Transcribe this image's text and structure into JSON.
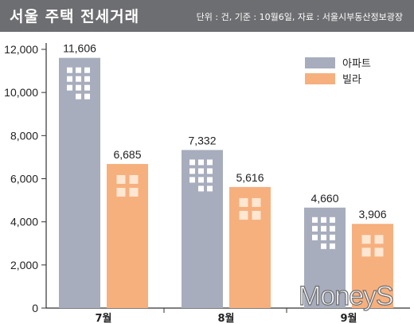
{
  "header": {
    "title": "서울 주택 전세거래",
    "unit_note": "단위 : 건, 기준 : 10월6일, 자료 : 서울시부동산정보광장"
  },
  "watermark": "MoneyS",
  "colors": {
    "header_bg": "#6d6e71",
    "apartment": "#a8adbd",
    "villa": "#f6b07e",
    "window_apartment": "#ffffff",
    "window_villa": "#fde6d2"
  },
  "chart_data": {
    "type": "bar",
    "title": "서울 주택 전세거래",
    "categories": [
      "7월",
      "8월",
      "9월"
    ],
    "series": [
      {
        "name": "아파트",
        "values": [
          11606,
          7332,
          4660
        ],
        "labels": [
          "11,606",
          "7,332",
          "4,660"
        ]
      },
      {
        "name": "빌라",
        "values": [
          6685,
          5616,
          3906
        ],
        "labels": [
          "6,685",
          "5,616",
          "3,906"
        ]
      }
    ],
    "yticks": [
      0,
      2000,
      4000,
      6000,
      8000,
      10000,
      12000
    ],
    "ytick_labels": [
      "0",
      "2,000",
      "4,000",
      "6,000",
      "8,000",
      "10,000",
      "12,000"
    ],
    "ylim": [
      0,
      12000
    ],
    "legend_position": "top-right",
    "grid": false
  }
}
